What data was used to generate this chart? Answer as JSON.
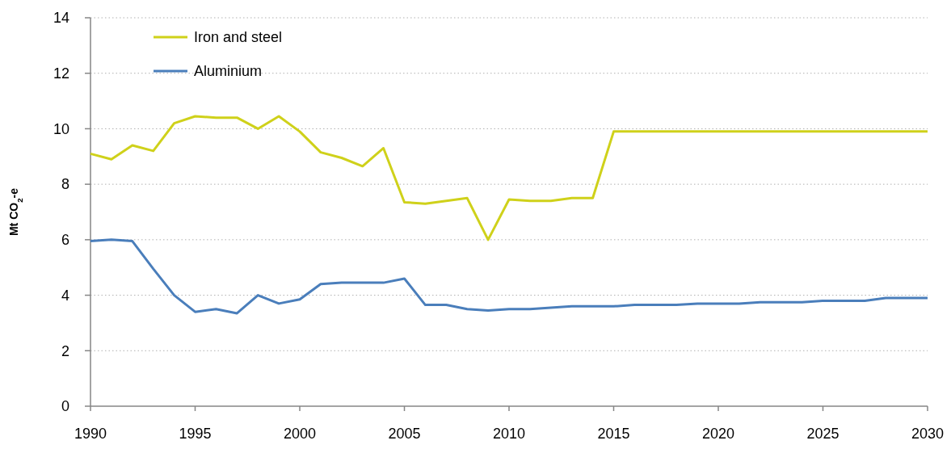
{
  "chart_data": {
    "type": "line",
    "ylabel": "Mt CO$_{2}$-e",
    "x": [
      1990,
      1991,
      1992,
      1993,
      1994,
      1995,
      1996,
      1997,
      1998,
      1999,
      2000,
      2001,
      2002,
      2003,
      2004,
      2005,
      2006,
      2007,
      2008,
      2009,
      2010,
      2011,
      2012,
      2013,
      2014,
      2015,
      2016,
      2017,
      2018,
      2019,
      2020,
      2021,
      2022,
      2023,
      2024,
      2025,
      2026,
      2027,
      2028,
      2029,
      2030
    ],
    "series": [
      {
        "name": "Iron and steel",
        "color": "#cfd11a",
        "values": [
          9.1,
          8.9,
          9.4,
          9.2,
          10.2,
          10.45,
          10.4,
          10.4,
          10.0,
          10.45,
          9.9,
          9.15,
          8.95,
          8.65,
          9.3,
          7.35,
          7.3,
          7.4,
          7.5,
          6.0,
          7.45,
          7.4,
          7.4,
          7.5,
          7.5,
          9.9,
          9.9,
          9.9,
          9.9,
          9.9,
          9.9,
          9.9,
          9.9,
          9.9,
          9.9,
          9.9,
          9.9,
          9.9,
          9.9,
          9.9,
          9.9
        ]
      },
      {
        "name": "Aluminium",
        "color": "#4a7ebb",
        "values": [
          5.95,
          6.0,
          5.95,
          4.95,
          4.0,
          3.4,
          3.5,
          3.35,
          4.0,
          3.7,
          3.85,
          4.4,
          4.45,
          4.45,
          4.45,
          4.6,
          3.65,
          3.65,
          3.5,
          3.45,
          3.5,
          3.5,
          3.55,
          3.6,
          3.6,
          3.6,
          3.65,
          3.65,
          3.65,
          3.7,
          3.7,
          3.7,
          3.75,
          3.75,
          3.75,
          3.8,
          3.8,
          3.8,
          3.9,
          3.9,
          3.9
        ]
      }
    ],
    "xlim": [
      1990,
      2030
    ],
    "xticks": [
      1990,
      1995,
      2000,
      2005,
      2010,
      2015,
      2020,
      2025,
      2030
    ],
    "ylim": [
      0,
      14
    ],
    "yticks": [
      0,
      2,
      4,
      6,
      8,
      10,
      12,
      14
    ],
    "grid": "y",
    "legend": "top left",
    "marker": "none",
    "line_style": "solid"
  }
}
